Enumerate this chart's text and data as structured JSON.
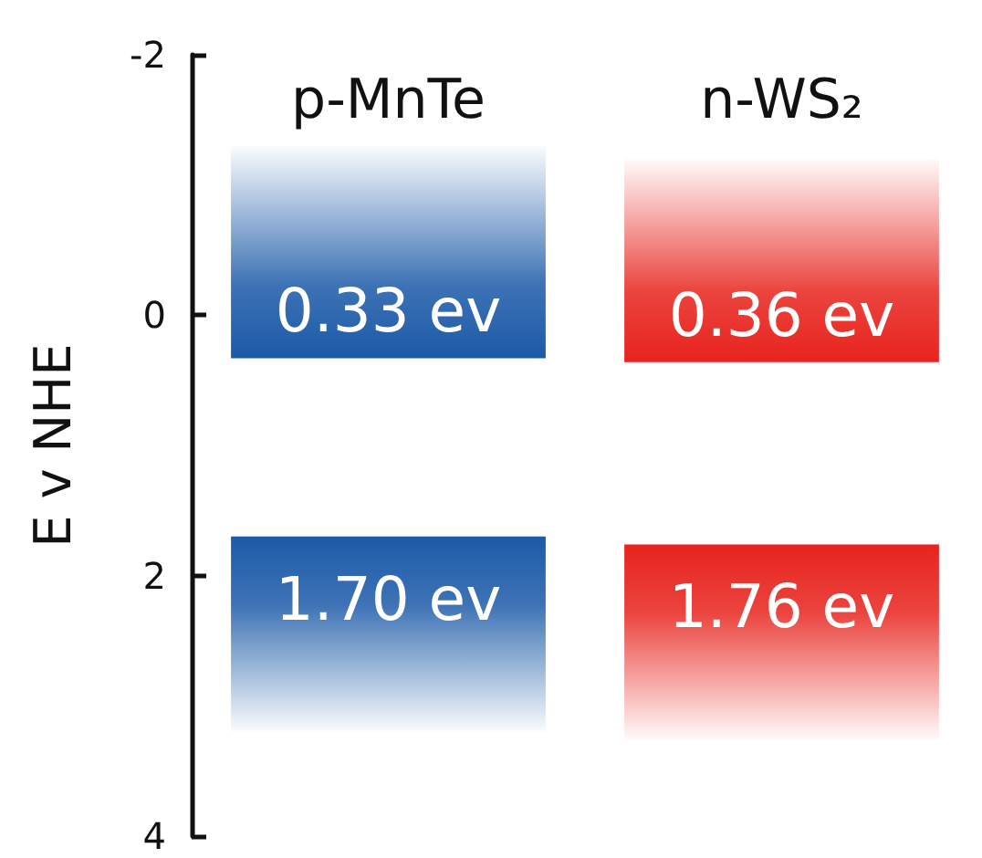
{
  "chart_data": {
    "type": "bar",
    "ylabel": "E v NHE",
    "categories": [
      "p-MnTe",
      "n-WS₂"
    ],
    "series": [
      {
        "colors": [
          "#1c5aa8",
          "#e8231d"
        ],
        "base": [
          -1.3,
          -1.2
        ],
        "values": [
          1.63,
          1.56
        ],
        "value_labels": [
          "0.33 ev",
          "0.36 ev"
        ]
      },
      {
        "colors": [
          "#1c5aa8",
          "#e8231d"
        ],
        "base": [
          3.2,
          3.26
        ],
        "values": [
          -1.5,
          -1.5
        ],
        "value_labels": [
          "1.70 ev",
          "1.76 ev"
        ]
      }
    ],
    "ylim": [
      4,
      -2
    ],
    "yticks": [
      -2,
      0,
      2,
      4
    ],
    "grid": false
  }
}
